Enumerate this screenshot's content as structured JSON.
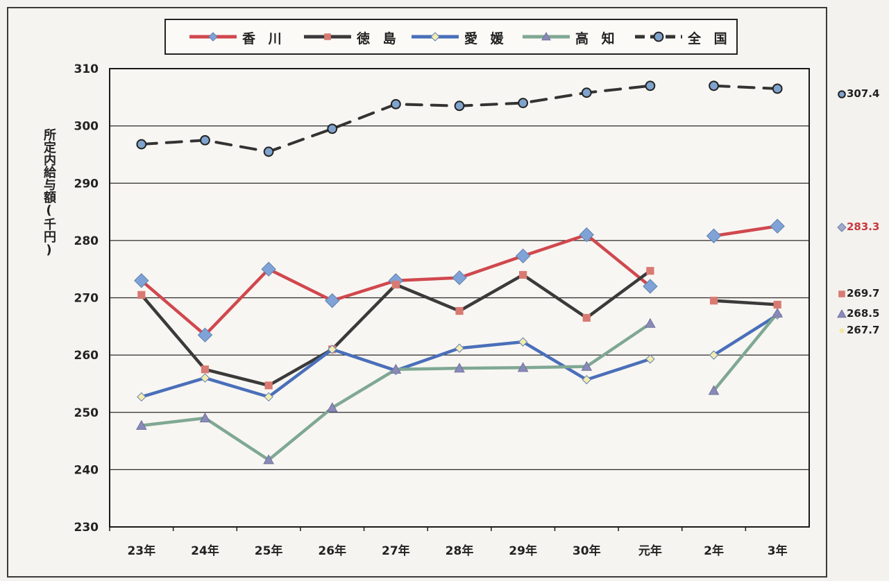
{
  "chart_data": {
    "type": "line",
    "ylabel": "所定内給与額(千円)",
    "ylim": [
      230,
      310
    ],
    "yticks": [
      230,
      240,
      250,
      260,
      270,
      280,
      290,
      300,
      310
    ],
    "categories": [
      "23年",
      "24年",
      "25年",
      "26年",
      "27年",
      "28年",
      "29年",
      "30年",
      "元年",
      "2年",
      "3年"
    ],
    "grid": true,
    "legend_position": "top",
    "series": [
      {
        "name": "香 川",
        "color": "#d0484e",
        "marker": "diamond",
        "dash": false,
        "values": [
          273.0,
          263.5,
          275.0,
          269.5,
          273.0,
          273.5,
          277.3,
          281.0,
          272.0,
          280.8,
          282.5
        ]
      },
      {
        "name": "徳 島",
        "color": "#3a3a3a",
        "marker": "square",
        "dash": false,
        "values": [
          270.5,
          257.5,
          254.7,
          261.0,
          272.3,
          267.7,
          274.0,
          266.5,
          274.7,
          269.5,
          268.8
        ]
      },
      {
        "name": "愛 媛",
        "color": "#4a6fba",
        "marker": "diamond",
        "dash": false,
        "values": [
          252.7,
          256.0,
          252.7,
          261.0,
          257.3,
          261.2,
          262.3,
          255.7,
          259.3,
          260.0,
          267.0
        ]
      },
      {
        "name": "高 知",
        "color": "#7fa893",
        "marker": "triangle",
        "dash": false,
        "values": [
          247.7,
          249.0,
          241.7,
          250.8,
          257.5,
          257.7,
          257.8,
          258.0,
          265.5,
          253.8,
          267.3
        ]
      },
      {
        "name": "全 国",
        "color": "#333333",
        "marker": "circle",
        "dash": true,
        "values": [
          296.8,
          297.5,
          295.5,
          299.5,
          303.8,
          303.5,
          304.0,
          305.8,
          307.0,
          307.0,
          306.5
        ]
      }
    ],
    "end_labels": [
      {
        "text": "307.4",
        "color": "#222222",
        "marker": "circle",
        "marker_color": "#5f8fc9",
        "value": 307.4
      },
      {
        "text": "283.3",
        "color": "#c8393f",
        "marker": "diamond",
        "marker_color": "#a7a7c7",
        "value": 283.3
      },
      {
        "text": "269.7",
        "color": "#222222",
        "marker": "square",
        "marker_color": "#d97a72",
        "value": 269.7
      },
      {
        "text": "268.5",
        "color": "#222222",
        "marker": "triangle",
        "marker_color": "#8a8ab8",
        "value": 268.5
      },
      {
        "text": "267.7",
        "color": "#222222",
        "marker": "dot",
        "marker_color": "#f1e9a4",
        "value": 267.7
      }
    ]
  }
}
